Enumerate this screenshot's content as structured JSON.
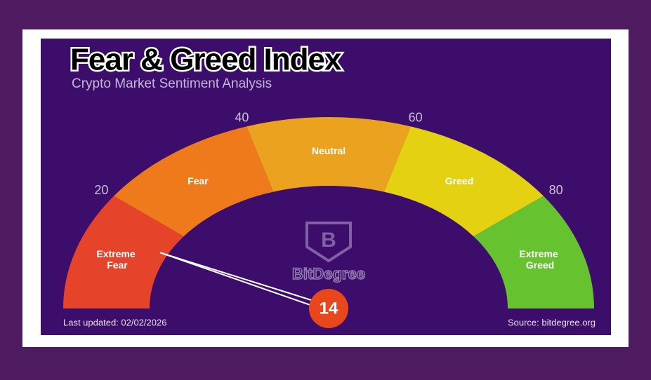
{
  "chart_data": {
    "type": "gauge",
    "title": "Fear & Greed Index",
    "subtitle": "Crypto Market Sentiment Analysis",
    "value": 14,
    "range": [
      0,
      100
    ],
    "ticks": [
      20,
      40,
      60,
      80
    ],
    "segments": [
      {
        "label": "Extreme Fear",
        "from": 0,
        "to": 20,
        "color": "#e5442b"
      },
      {
        "label": "Fear",
        "from": 20,
        "to": 40,
        "color": "#ee7a1c"
      },
      {
        "label": "Neutral",
        "from": 40,
        "to": 60,
        "color": "#eba21e"
      },
      {
        "label": "Greed",
        "from": 60,
        "to": 80,
        "color": "#e3d112"
      },
      {
        "label": "Extreme Greed",
        "from": 80,
        "to": 100,
        "color": "#66c22e"
      }
    ],
    "needle_color": "#e8471c",
    "watermark": "BitDegree",
    "last_updated": "Last updated: 02/02/2026",
    "source": "Source: bitdegree.org"
  }
}
